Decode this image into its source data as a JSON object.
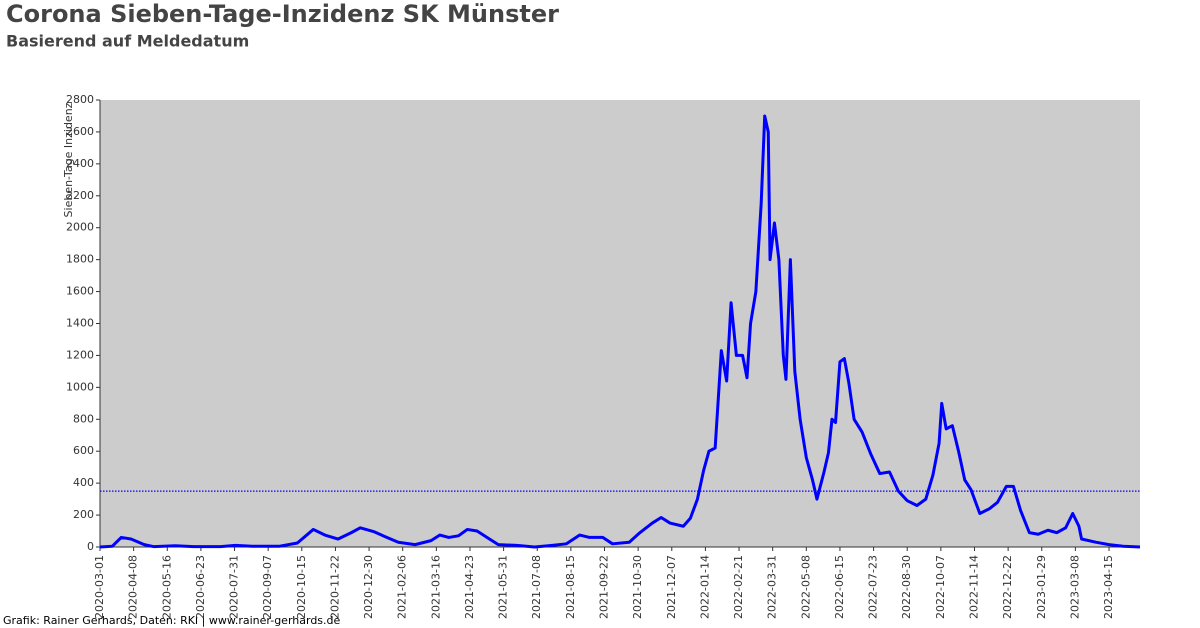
{
  "chart_data": {
    "type": "line",
    "title": "Corona Sieben-Tage-Inzidenz SK Münster",
    "subtitle": "Basierend auf Meldedatum",
    "y_label": "Sieben-Tage Inzidenz",
    "footer": "Grafik: Rainer Gerhards, Daten: RKI | www.rainer-gerhards.de",
    "x": [
      "2020-03-01",
      "2020-03-15",
      "2020-03-25",
      "2020-04-05",
      "2020-04-20",
      "2020-05-01",
      "2020-05-25",
      "2020-06-15",
      "2020-07-15",
      "2020-08-01",
      "2020-08-20",
      "2020-09-20",
      "2020-10-10",
      "2020-10-28",
      "2020-11-10",
      "2020-11-25",
      "2020-12-10",
      "2020-12-20",
      "2021-01-05",
      "2021-01-15",
      "2021-02-01",
      "2021-02-20",
      "2021-03-10",
      "2021-03-20",
      "2021-03-30",
      "2021-04-10",
      "2021-04-20",
      "2021-05-01",
      "2021-05-15",
      "2021-05-25",
      "2021-06-15",
      "2021-07-05",
      "2021-07-25",
      "2021-08-10",
      "2021-08-25",
      "2021-09-05",
      "2021-09-20",
      "2021-10-01",
      "2021-10-20",
      "2021-11-01",
      "2021-11-15",
      "2021-11-25",
      "2021-12-05",
      "2021-12-20",
      "2021-12-28",
      "2022-01-05",
      "2022-01-12",
      "2022-01-18",
      "2022-01-25",
      "2022-02-01",
      "2022-02-07",
      "2022-02-12",
      "2022-02-18",
      "2022-02-25",
      "2022-03-02",
      "2022-03-06",
      "2022-03-12",
      "2022-03-18",
      "2022-03-22",
      "2022-03-26",
      "2022-03-28",
      "2022-04-02",
      "2022-04-07",
      "2022-04-12",
      "2022-04-15",
      "2022-04-20",
      "2022-04-25",
      "2022-05-01",
      "2022-05-08",
      "2022-05-15",
      "2022-05-20",
      "2022-05-28",
      "2022-06-02",
      "2022-06-06",
      "2022-06-10",
      "2022-06-15",
      "2022-06-20",
      "2022-06-25",
      "2022-07-01",
      "2022-07-10",
      "2022-07-20",
      "2022-07-30",
      "2022-08-10",
      "2022-08-20",
      "2022-08-30",
      "2022-09-10",
      "2022-09-20",
      "2022-09-28",
      "2022-10-05",
      "2022-10-08",
      "2022-10-13",
      "2022-10-20",
      "2022-10-27",
      "2022-11-03",
      "2022-11-10",
      "2022-11-20",
      "2022-12-01",
      "2022-12-10",
      "2022-12-20",
      "2022-12-28",
      "2023-01-05",
      "2023-01-15",
      "2023-01-25",
      "2023-02-05",
      "2023-02-15",
      "2023-02-25",
      "2023-03-05",
      "2023-03-12",
      "2023-03-15",
      "2023-03-31",
      "2023-04-15",
      "2023-05-01",
      "2023-05-20"
    ],
    "series": [
      {
        "name": "Sieben-Tage Inzidenz",
        "color": "#0000ff",
        "values": [
          0,
          5,
          60,
          50,
          15,
          2,
          8,
          2,
          2,
          10,
          5,
          5,
          25,
          110,
          75,
          50,
          90,
          120,
          95,
          70,
          30,
          15,
          40,
          75,
          60,
          70,
          110,
          100,
          50,
          15,
          10,
          0,
          10,
          20,
          75,
          60,
          60,
          20,
          30,
          90,
          150,
          185,
          150,
          130,
          180,
          300,
          480,
          600,
          620,
          1230,
          1040,
          1530,
          1200,
          1200,
          1060,
          1400,
          1600,
          2150,
          2700,
          2600,
          1800,
          2030,
          1800,
          1200,
          1050,
          1800,
          1100,
          800,
          560,
          420,
          300,
          470,
          590,
          800,
          780,
          1160,
          1180,
          1030,
          800,
          720,
          580,
          460,
          470,
          350,
          290,
          260,
          300,
          450,
          650,
          900,
          740,
          760,
          600,
          420,
          360,
          210,
          240,
          280,
          380,
          380,
          230,
          90,
          80,
          105,
          90,
          120,
          210,
          130,
          50,
          30,
          15,
          5,
          0
        ]
      }
    ],
    "reference_line": 350,
    "xlim": [
      "2020-03-01",
      "2023-05-20"
    ],
    "xticks": [
      "2020-03-01",
      "2020-04-08",
      "2020-05-16",
      "2020-06-23",
      "2020-07-31",
      "2020-09-07",
      "2020-10-15",
      "2020-11-22",
      "2020-12-30",
      "2021-02-06",
      "2021-03-16",
      "2021-04-23",
      "2021-05-31",
      "2021-07-08",
      "2021-08-15",
      "2021-09-22",
      "2021-10-30",
      "2021-12-07",
      "2022-01-14",
      "2022-02-21",
      "2022-03-31",
      "2022-05-08",
      "2022-06-15",
      "2022-07-23",
      "2022-08-30",
      "2022-10-07",
      "2022-11-14",
      "2022-12-22",
      "2023-01-29",
      "2023-03-08",
      "2023-04-15"
    ],
    "ylim": [
      0,
      2800
    ],
    "yticks": [
      0,
      200,
      400,
      600,
      800,
      1000,
      1200,
      1400,
      1600,
      1800,
      2000,
      2200,
      2400,
      2600,
      2800
    ]
  }
}
